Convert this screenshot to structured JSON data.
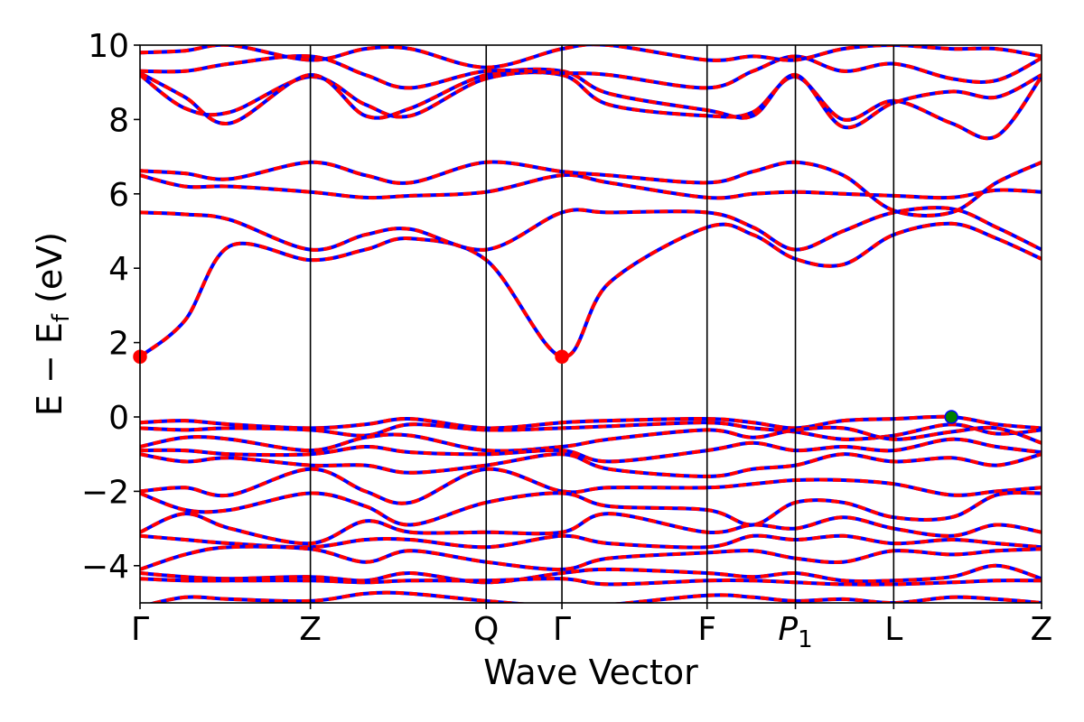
{
  "chart_data": {
    "type": "line",
    "title": "",
    "xlabel": "Wave Vector",
    "ylabel": "E − E",
    "ylabel_subscript": "f",
    "ylabel_unit": " (eV)",
    "ylim": [
      -5,
      10
    ],
    "yticks": [
      -4,
      -2,
      0,
      2,
      4,
      6,
      8,
      10
    ],
    "ytick_labels": [
      "−4",
      "−2",
      "0",
      "2",
      "4",
      "6",
      "8",
      "10"
    ],
    "xlim": [
      0,
      1
    ],
    "kpoints": [
      {
        "label": "Γ",
        "x": 0.0
      },
      {
        "label": "Z",
        "x": 0.189
      },
      {
        "label": "Q",
        "x": 0.384
      },
      {
        "label": "Γ",
        "x": 0.468
      },
      {
        "label": "F",
        "x": 0.629
      },
      {
        "label": "P",
        "sub": "1",
        "italic": true,
        "x": 0.727
      },
      {
        "label": "L",
        "x": 0.836
      },
      {
        "label": "Z",
        "x": 1.0
      }
    ],
    "series_colors": {
      "primary": "#ff0000",
      "secondary": "#0000ff"
    },
    "markers": [
      {
        "role": "conduction-band-minimum",
        "x": 0.0,
        "y": 1.62,
        "color": "#ff0000"
      },
      {
        "role": "conduction-band-minimum",
        "x": 0.468,
        "y": 1.62,
        "color": "#ff0000"
      },
      {
        "role": "valence-band-maximum",
        "x": 0.9,
        "y": 0.0,
        "color": "#008000"
      }
    ],
    "bands": [
      {
        "k": [
          0,
          0.05,
          0.1,
          0.189,
          0.25,
          0.3,
          0.384,
          0.468,
          0.52,
          0.629,
          0.68,
          0.727,
          0.78,
          0.836,
          0.9,
          0.95,
          1.0
        ],
        "e": [
          1.62,
          2.6,
          4.6,
          4.22,
          4.5,
          4.8,
          4.22,
          1.62,
          3.6,
          5.1,
          4.9,
          4.25,
          4.1,
          4.9,
          5.2,
          4.8,
          4.25
        ]
      },
      {
        "k": [
          0,
          0.05,
          0.1,
          0.189,
          0.25,
          0.3,
          0.384,
          0.468,
          0.52,
          0.629,
          0.68,
          0.727,
          0.78,
          0.836,
          0.9,
          0.95,
          1.0
        ],
        "e": [
          5.5,
          5.45,
          5.3,
          4.5,
          4.9,
          5.05,
          4.5,
          5.5,
          5.5,
          5.5,
          5.1,
          4.5,
          5.0,
          5.5,
          5.6,
          5.1,
          4.5
        ]
      },
      {
        "k": [
          0,
          0.05,
          0.1,
          0.189,
          0.25,
          0.3,
          0.384,
          0.468,
          0.52,
          0.629,
          0.68,
          0.727,
          0.78,
          0.836,
          0.9,
          0.95,
          1.0
        ],
        "e": [
          6.5,
          6.2,
          6.2,
          6.05,
          5.9,
          5.95,
          6.05,
          6.5,
          6.3,
          5.9,
          6.0,
          6.05,
          6.0,
          5.95,
          5.9,
          6.1,
          6.05
        ]
      },
      {
        "k": [
          0,
          0.05,
          0.1,
          0.189,
          0.25,
          0.3,
          0.384,
          0.468,
          0.52,
          0.629,
          0.68,
          0.727,
          0.78,
          0.836,
          0.9,
          0.95,
          1.0
        ],
        "e": [
          6.62,
          6.55,
          6.4,
          6.85,
          6.5,
          6.3,
          6.85,
          6.6,
          6.5,
          6.3,
          6.6,
          6.85,
          6.5,
          5.55,
          5.5,
          6.3,
          6.85
        ]
      },
      {
        "k": [
          0,
          0.05,
          0.1,
          0.189,
          0.25,
          0.3,
          0.384,
          0.468,
          0.52,
          0.629,
          0.68,
          0.727,
          0.78,
          0.836,
          0.9,
          0.95,
          1.0
        ],
        "e": [
          9.2,
          8.3,
          8.2,
          9.15,
          8.4,
          8.1,
          9.1,
          9.2,
          8.4,
          8.1,
          8.2,
          9.15,
          8.0,
          8.5,
          7.9,
          7.55,
          9.15
        ]
      },
      {
        "k": [
          0,
          0.05,
          0.1,
          0.189,
          0.25,
          0.3,
          0.384,
          0.468,
          0.52,
          0.629,
          0.68,
          0.727,
          0.78,
          0.836,
          0.9,
          0.95,
          1.0
        ],
        "e": [
          9.25,
          8.6,
          7.9,
          9.2,
          8.1,
          8.3,
          9.2,
          9.3,
          8.7,
          8.25,
          8.1,
          9.2,
          7.8,
          8.45,
          8.75,
          8.6,
          9.2
        ]
      },
      {
        "k": [
          0,
          0.05,
          0.1,
          0.189,
          0.25,
          0.3,
          0.384,
          0.468,
          0.52,
          0.629,
          0.68,
          0.727,
          0.78,
          0.836,
          0.9,
          0.95,
          1.0
        ],
        "e": [
          9.3,
          9.3,
          9.5,
          9.7,
          9.2,
          8.85,
          9.3,
          9.25,
          9.2,
          8.85,
          9.3,
          9.7,
          9.3,
          9.5,
          9.1,
          9.05,
          9.65
        ]
      },
      {
        "k": [
          0,
          0.05,
          0.1,
          0.189,
          0.25,
          0.3,
          0.384,
          0.468,
          0.52,
          0.629,
          0.68,
          0.727,
          0.78,
          0.836,
          0.9,
          0.95,
          1.0
        ],
        "e": [
          9.8,
          9.85,
          10.0,
          9.6,
          9.9,
          9.9,
          9.4,
          9.9,
          10.0,
          9.6,
          9.7,
          9.6,
          9.9,
          10.0,
          9.9,
          9.9,
          9.7
        ]
      },
      {
        "k": [
          0,
          0.05,
          0.1,
          0.189,
          0.25,
          0.3,
          0.384,
          0.468,
          0.52,
          0.629,
          0.68,
          0.727,
          0.78,
          0.836,
          0.9,
          0.95,
          1.0
        ],
        "e": [
          -0.15,
          -0.1,
          -0.2,
          -0.3,
          -0.2,
          -0.05,
          -0.3,
          -0.15,
          -0.1,
          -0.05,
          -0.15,
          -0.3,
          -0.1,
          -0.05,
          0.0,
          -0.2,
          -0.3
        ]
      },
      {
        "k": [
          0,
          0.05,
          0.1,
          0.189,
          0.25,
          0.3,
          0.384,
          0.468,
          0.52,
          0.629,
          0.68,
          0.727,
          0.78,
          0.836,
          0.9,
          0.95,
          1.0
        ],
        "e": [
          -0.3,
          -0.35,
          -0.3,
          -0.35,
          -0.5,
          -0.2,
          -0.35,
          -0.3,
          -0.25,
          -0.15,
          -0.3,
          -0.4,
          -0.6,
          -0.5,
          -0.2,
          -0.45,
          -0.35
        ]
      },
      {
        "k": [
          0,
          0.05,
          0.1,
          0.189,
          0.25,
          0.3,
          0.384,
          0.468,
          0.52,
          0.629,
          0.68,
          0.727,
          0.78,
          0.836,
          0.9,
          0.95,
          1.0
        ],
        "e": [
          -0.8,
          -0.55,
          -0.6,
          -0.9,
          -0.55,
          -0.5,
          -0.9,
          -0.8,
          -0.6,
          -0.35,
          -0.55,
          -0.35,
          -0.3,
          -0.6,
          -0.4,
          -0.3,
          -0.7
        ]
      },
      {
        "k": [
          0,
          0.05,
          0.1,
          0.189,
          0.25,
          0.3,
          0.384,
          0.468,
          0.52,
          0.629,
          0.68,
          0.727,
          0.78,
          0.836,
          0.9,
          0.95,
          1.0
        ],
        "e": [
          -0.9,
          -0.9,
          -1.0,
          -1.0,
          -0.8,
          -0.95,
          -1.0,
          -0.9,
          -1.2,
          -0.9,
          -0.7,
          -0.9,
          -0.8,
          -0.9,
          -0.6,
          -0.8,
          -0.95
        ]
      },
      {
        "k": [
          0,
          0.05,
          0.1,
          0.189,
          0.25,
          0.3,
          0.384,
          0.468,
          0.52,
          0.629,
          0.68,
          0.727,
          0.78,
          0.836,
          0.9,
          0.95,
          1.0
        ],
        "e": [
          -1.0,
          -1.2,
          -1.1,
          -1.3,
          -1.3,
          -1.5,
          -1.3,
          -1.0,
          -1.4,
          -1.6,
          -1.4,
          -1.3,
          -1.0,
          -1.2,
          -1.1,
          -1.3,
          -1.0
        ]
      },
      {
        "k": [
          0,
          0.05,
          0.1,
          0.189,
          0.25,
          0.3,
          0.384,
          0.468,
          0.52,
          0.629,
          0.68,
          0.727,
          0.78,
          0.836,
          0.9,
          0.95,
          1.0
        ],
        "e": [
          -2.0,
          -1.9,
          -2.1,
          -1.4,
          -2.0,
          -2.3,
          -1.4,
          -2.0,
          -1.9,
          -1.9,
          -1.8,
          -1.7,
          -1.7,
          -1.8,
          -2.1,
          -2.0,
          -1.9
        ]
      },
      {
        "k": [
          0,
          0.05,
          0.1,
          0.189,
          0.25,
          0.3,
          0.384,
          0.468,
          0.52,
          0.629,
          0.68,
          0.727,
          0.78,
          0.836,
          0.9,
          0.95,
          1.0
        ],
        "e": [
          -2.05,
          -2.5,
          -2.5,
          -2.05,
          -2.4,
          -2.9,
          -2.3,
          -2.05,
          -2.4,
          -2.5,
          -2.9,
          -2.3,
          -2.3,
          -2.7,
          -2.7,
          -2.1,
          -2.05
        ]
      },
      {
        "k": [
          0,
          0.05,
          0.1,
          0.189,
          0.25,
          0.3,
          0.384,
          0.468,
          0.52,
          0.629,
          0.68,
          0.727,
          0.78,
          0.836,
          0.9,
          0.95,
          1.0
        ],
        "e": [
          -3.1,
          -2.6,
          -3.0,
          -3.4,
          -2.8,
          -3.1,
          -3.1,
          -3.1,
          -2.6,
          -3.1,
          -2.9,
          -3.0,
          -2.7,
          -3.0,
          -3.2,
          -2.9,
          -3.1
        ]
      },
      {
        "k": [
          0,
          0.05,
          0.1,
          0.189,
          0.25,
          0.3,
          0.384,
          0.468,
          0.52,
          0.629,
          0.68,
          0.727,
          0.78,
          0.836,
          0.9,
          0.95,
          1.0
        ],
        "e": [
          -3.2,
          -3.3,
          -3.4,
          -3.5,
          -3.3,
          -3.3,
          -3.5,
          -3.2,
          -3.4,
          -3.5,
          -3.2,
          -3.3,
          -3.2,
          -3.4,
          -3.3,
          -3.4,
          -3.5
        ]
      },
      {
        "k": [
          0,
          0.05,
          0.1,
          0.189,
          0.25,
          0.3,
          0.384,
          0.468,
          0.52,
          0.629,
          0.68,
          0.727,
          0.78,
          0.836,
          0.9,
          0.95,
          1.0
        ],
        "e": [
          -4.1,
          -3.7,
          -3.5,
          -3.55,
          -3.9,
          -3.6,
          -3.9,
          -4.1,
          -3.8,
          -3.65,
          -3.6,
          -3.8,
          -3.9,
          -3.6,
          -3.7,
          -3.6,
          -3.55
        ]
      },
      {
        "k": [
          0,
          0.05,
          0.1,
          0.189,
          0.25,
          0.3,
          0.384,
          0.468,
          0.52,
          0.629,
          0.68,
          0.727,
          0.78,
          0.836,
          0.9,
          0.95,
          1.0
        ],
        "e": [
          -4.2,
          -4.3,
          -4.35,
          -4.3,
          -4.4,
          -4.2,
          -4.45,
          -4.2,
          -4.1,
          -4.2,
          -4.3,
          -4.2,
          -4.4,
          -4.4,
          -4.3,
          -4.0,
          -4.35
        ]
      },
      {
        "k": [
          0,
          0.05,
          0.1,
          0.189,
          0.25,
          0.3,
          0.384,
          0.468,
          0.52,
          0.629,
          0.68,
          0.727,
          0.78,
          0.836,
          0.9,
          0.95,
          1.0
        ],
        "e": [
          -4.35,
          -4.4,
          -4.4,
          -4.4,
          -4.45,
          -4.4,
          -4.4,
          -4.35,
          -4.5,
          -4.4,
          -4.4,
          -4.45,
          -4.5,
          -4.5,
          -4.45,
          -4.4,
          -4.4
        ]
      },
      {
        "k": [
          0,
          0.05,
          0.1,
          0.189,
          0.25,
          0.3,
          0.384,
          0.468,
          0.52,
          0.629,
          0.68,
          0.727,
          0.78,
          0.836,
          0.9,
          0.95,
          1.0
        ],
        "e": [
          -5.1,
          -4.85,
          -4.9,
          -4.95,
          -4.75,
          -4.75,
          -4.95,
          -5.1,
          -5.05,
          -4.8,
          -4.85,
          -4.95,
          -4.9,
          -5.0,
          -4.85,
          -4.9,
          -5.0
        ]
      }
    ]
  }
}
